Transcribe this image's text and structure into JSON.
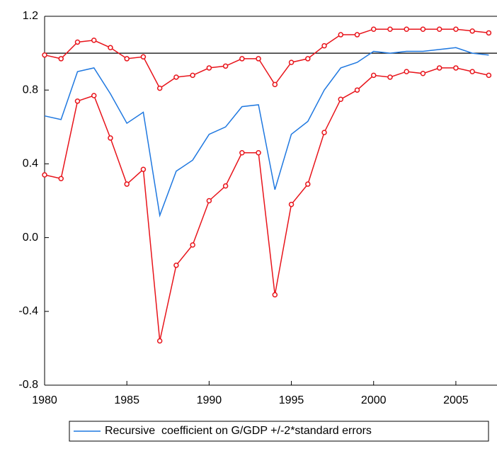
{
  "chart_data": {
    "type": "line",
    "x": [
      1980,
      1981,
      1982,
      1983,
      1984,
      1985,
      1986,
      1987,
      1988,
      1989,
      1990,
      1991,
      1992,
      1993,
      1994,
      1995,
      1996,
      1997,
      1998,
      1999,
      2000,
      2001,
      2002,
      2003,
      2004,
      2005,
      2006,
      2007
    ],
    "series": [
      {
        "name": "Recursive  coefficient on G/GDP +/-2*standard errors",
        "color": "#1f78e0",
        "values": [
          0.66,
          0.64,
          0.9,
          0.92,
          0.78,
          0.62,
          0.68,
          0.12,
          0.36,
          0.42,
          0.56,
          0.6,
          0.71,
          0.72,
          0.26,
          0.56,
          0.63,
          0.8,
          0.92,
          0.95,
          1.01,
          1.0,
          1.01,
          1.01,
          1.02,
          1.03,
          1.0,
          0.99
        ]
      },
      {
        "color": "#e8141b",
        "markers": true,
        "values": [
          0.99,
          0.97,
          1.06,
          1.07,
          1.03,
          0.97,
          0.98,
          0.81,
          0.87,
          0.88,
          0.92,
          0.93,
          0.97,
          0.97,
          0.83,
          0.95,
          0.97,
          1.04,
          1.1,
          1.1,
          1.13,
          1.13,
          1.13,
          1.13,
          1.13,
          1.13,
          1.12,
          1.11
        ]
      },
      {
        "color": "#e8141b",
        "markers": true,
        "values": [
          0.34,
          0.32,
          0.74,
          0.77,
          0.54,
          0.29,
          0.37,
          -0.56,
          -0.15,
          -0.04,
          0.2,
          0.28,
          0.46,
          0.46,
          -0.31,
          0.18,
          0.29,
          0.57,
          0.75,
          0.8,
          0.88,
          0.87,
          0.9,
          0.89,
          0.92,
          0.92,
          0.9,
          0.88
        ]
      }
    ],
    "reference_line": 1,
    "xlim": [
      1980,
      2007.5
    ],
    "xticks": [
      1980,
      1985,
      1990,
      1995,
      2000,
      2005
    ],
    "ylim": [
      -0.8,
      1.2
    ],
    "yticks": [
      {
        "value": -0.8,
        "label": "-0.8"
      },
      {
        "value": -0.4,
        "label": "-0.4"
      },
      {
        "value": 0,
        "label": "0.0"
      },
      {
        "value": 0.4,
        "label": "0.4"
      },
      {
        "value": 0.8,
        "label": "0.8"
      },
      {
        "value": 1.2,
        "label": "1.2"
      }
    ],
    "legend": "bottom"
  }
}
